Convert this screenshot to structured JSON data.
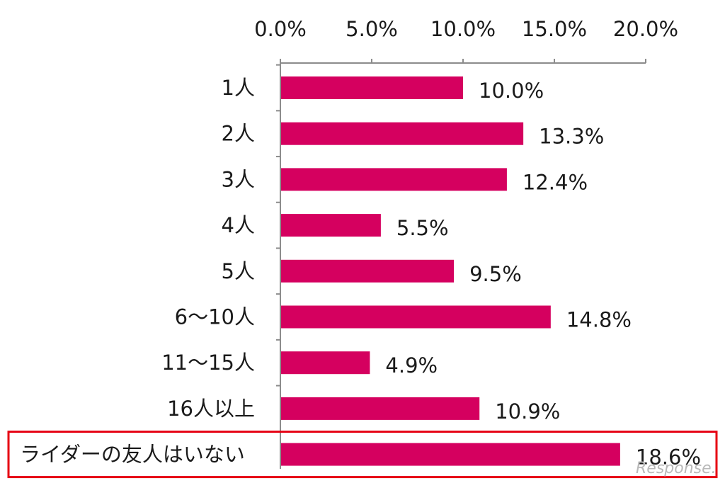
{
  "chart_data": {
    "type": "bar",
    "orientation": "horizontal",
    "categories": [
      "1人",
      "2人",
      "3人",
      "4人",
      "5人",
      "6～10人",
      "11～15人",
      "16人以上",
      "ライダーの友人はいない"
    ],
    "values": [
      10.0,
      13.3,
      12.4,
      5.5,
      9.5,
      14.8,
      4.9,
      10.9,
      18.6
    ],
    "value_labels": [
      "10.0%",
      "13.3%",
      "12.4%",
      "5.5%",
      "9.5%",
      "14.8%",
      "4.9%",
      "10.9%",
      "18.6%"
    ],
    "x_ticks": [
      "0.0%",
      "5.0%",
      "10.0%",
      "15.0%",
      "20.0%"
    ],
    "xlim": [
      0,
      20
    ],
    "x_axis_position": "top",
    "grid": false,
    "bar_color": "#d5005f",
    "highlight_category": "ライダーの友人はいない",
    "highlight_color": "#e60012"
  },
  "watermark": "Response."
}
